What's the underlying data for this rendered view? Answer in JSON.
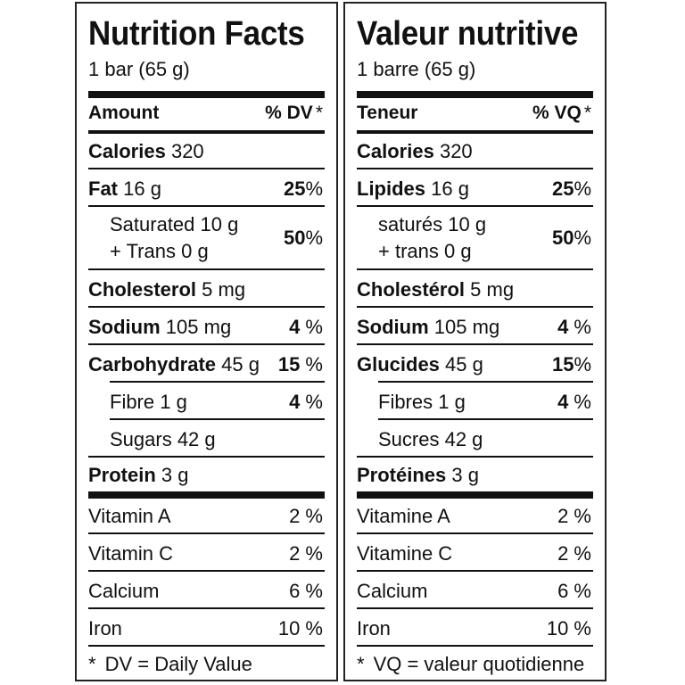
{
  "english": {
    "title": "Nutrition Facts",
    "serving": "1 bar (65 g)",
    "header_left": "Amount",
    "header_right": "% DV",
    "header_asterisk": "*",
    "rows": [
      {
        "name": "Calories",
        "amount": "320",
        "dv": ""
      },
      {
        "name": "Fat",
        "amount": "16 g",
        "dv_num": "25",
        "dv_unit": "%"
      },
      {
        "line1": "Saturated 10 g",
        "line2": "+ Trans 0 g",
        "dv_num": "50",
        "dv_unit": "%"
      },
      {
        "name": "Cholesterol",
        "amount": "5 mg"
      },
      {
        "name": "Sodium",
        "amount": "105 mg",
        "dv_num": "4",
        "dv_unit": " %"
      },
      {
        "name": "Carbohydrate",
        "amount": "45 g",
        "dv_num": "15",
        "dv_unit": " %"
      },
      {
        "label": "Fibre 1 g",
        "dv_num": "4",
        "dv_unit": " %"
      },
      {
        "label": "Sugars 42 g"
      },
      {
        "name": "Protein",
        "amount": "3 g"
      }
    ],
    "vitamins": [
      {
        "label": "Vitamin A",
        "dv": "2 %"
      },
      {
        "label": "Vitamin C",
        "dv": "2 %"
      },
      {
        "label": "Calcium",
        "dv": "6 %"
      },
      {
        "label": "Iron",
        "dv": "10 %"
      }
    ],
    "footnote_asterisk": "*",
    "footnote": "DV = Daily Value"
  },
  "french": {
    "title": "Valeur nutritive",
    "serving": "1 barre (65 g)",
    "header_left": "Teneur",
    "header_right": "% VQ",
    "header_asterisk": "*",
    "rows": [
      {
        "name": "Calories",
        "amount": "320"
      },
      {
        "name": "Lipides",
        "amount": "16 g",
        "dv_num": "25",
        "dv_unit": "%"
      },
      {
        "line1": "saturés 10 g",
        "line2": "+ trans 0 g",
        "dv_num": "50",
        "dv_unit": "%"
      },
      {
        "name": "Cholestérol",
        "amount": "5 mg"
      },
      {
        "name": "Sodium",
        "amount": "105 mg",
        "dv_num": "4",
        "dv_unit": " %"
      },
      {
        "name": "Glucides",
        "amount": "45 g",
        "dv_num": "15",
        "dv_unit": "%"
      },
      {
        "label": "Fibres 1 g",
        "dv_num": "4",
        "dv_unit": " %"
      },
      {
        "label": "Sucres 42 g"
      },
      {
        "name": "Protéines",
        "amount": "3 g"
      }
    ],
    "vitamins": [
      {
        "label": "Vitamine A",
        "dv": "2 %"
      },
      {
        "label": "Vitamine C",
        "dv": "2 %"
      },
      {
        "label": "Calcium",
        "dv": "6 %"
      },
      {
        "label": "Iron",
        "dv": "10 %"
      }
    ],
    "footnote_asterisk": "*",
    "footnote": "VQ = valeur quotidienne"
  }
}
